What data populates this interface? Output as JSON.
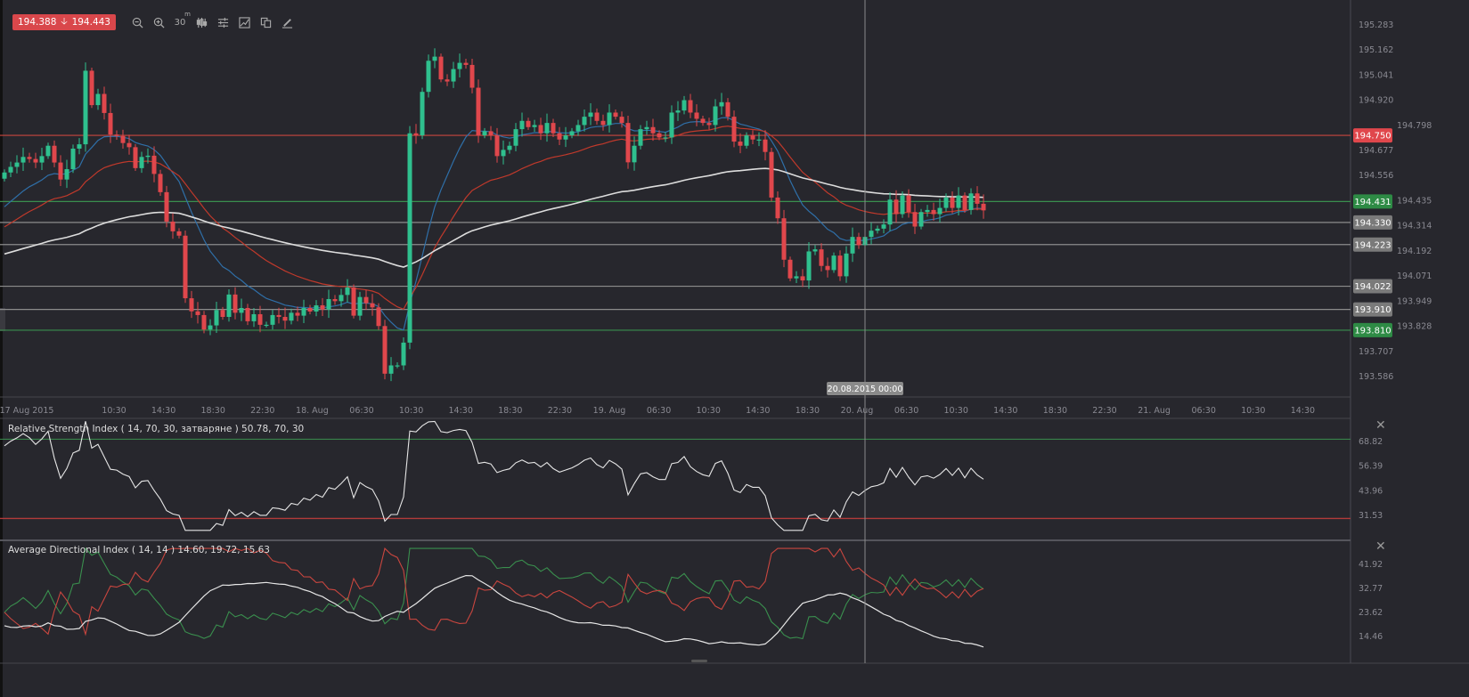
{
  "toolbar": {
    "bid": "194.388",
    "ask": "194.443",
    "timeframe": "30",
    "timeframe_unit": "m",
    "icons": [
      "zoom-out-icon",
      "zoom-in-icon",
      "timeframe",
      "candle-type-icon",
      "indicators-icon",
      "chart-area-icon",
      "copy-icon",
      "draw-icon"
    ]
  },
  "crosshair_label": "20.08.2015 00:00",
  "rsi": {
    "title": "Relative Strength Index ( 14, 70, 30, затваряне ) 50.78, 70, 30",
    "ticks": [
      "68.82",
      "56.39",
      "43.96",
      "31.53"
    ],
    "overbought": 70,
    "oversold": 30
  },
  "adx": {
    "title": "Average Directional Index ( 14, 14 ) 14.60, 19.72, 15.63",
    "ticks": [
      "41.92",
      "32.77",
      "23.62",
      "14.46"
    ]
  },
  "colors": {
    "bull": "#2fc08e",
    "bear": "#e0474c",
    "ma_fast": "#2f6fa8",
    "ma_mid": "#c0392b",
    "ma_slow": "#dddddd",
    "bg": "#27272d"
  },
  "chart_data": {
    "type": "candlestick",
    "timeframe": "30m",
    "price_axis": {
      "min": 193.586,
      "max": 195.283,
      "ticks": [
        "195.283",
        "195.162",
        "195.041",
        "194.920",
        "194.798",
        "194.677",
        "194.556",
        "194.435",
        "194.314",
        "194.192",
        "194.071",
        "193.949",
        "193.828",
        "193.707",
        "193.586"
      ]
    },
    "time_labels": [
      "17 Aug 2015",
      "10:30",
      "14:30",
      "18:30",
      "22:30",
      "18. Aug",
      "06:30",
      "10:30",
      "14:30",
      "18:30",
      "22:30",
      "19. Aug",
      "06:30",
      "10:30",
      "14:30",
      "18:30",
      "20. Aug",
      "06:30",
      "10:30",
      "14:30",
      "18:30",
      "22:30",
      "21. Aug",
      "06:30",
      "10:30",
      "14:30"
    ],
    "closes": [
      194.571,
      194.598,
      194.619,
      194.646,
      194.636,
      194.619,
      194.65,
      194.7,
      194.619,
      194.537,
      194.587,
      194.686,
      194.707,
      195.062,
      194.896,
      194.95,
      194.858,
      194.754,
      194.747,
      194.713,
      194.693,
      194.592,
      194.646,
      194.652,
      194.564,
      194.476,
      194.334,
      194.287,
      194.266,
      193.964,
      193.901,
      193.883,
      193.813,
      193.833,
      193.907,
      193.874,
      193.982,
      193.894,
      193.917,
      193.853,
      193.887,
      193.836,
      193.836,
      193.883,
      193.874,
      193.856,
      193.894,
      193.88,
      193.917,
      193.9,
      193.93,
      193.91,
      193.96,
      193.95,
      193.98,
      194.016,
      193.88,
      193.97,
      193.94,
      193.92,
      193.83,
      193.6,
      193.64,
      193.64,
      193.75,
      194.76,
      194.75,
      194.96,
      195.11,
      195.13,
      195.02,
      195.01,
      195.07,
      195.1,
      195.09,
      194.98,
      194.75,
      194.77,
      194.75,
      194.65,
      194.68,
      194.7,
      194.78,
      194.82,
      194.79,
      194.8,
      194.76,
      194.81,
      194.76,
      194.73,
      194.75,
      194.77,
      194.8,
      194.84,
      194.86,
      194.82,
      194.8,
      194.86,
      194.84,
      194.81,
      194.62,
      194.7,
      194.78,
      194.79,
      194.76,
      194.74,
      194.74,
      194.86,
      194.87,
      194.92,
      194.86,
      194.83,
      194.81,
      194.8,
      194.89,
      194.91,
      194.84,
      194.72,
      194.7,
      194.75,
      194.73,
      194.73,
      194.67,
      194.45,
      194.35,
      194.15,
      194.06,
      194.07,
      194.05,
      194.19,
      194.2,
      194.12,
      194.1,
      194.17,
      194.07,
      194.18,
      194.26,
      194.22,
      194.26,
      194.29,
      194.3,
      194.32,
      194.44,
      194.37,
      194.46,
      194.38,
      194.31,
      194.38,
      194.39,
      194.37,
      194.4,
      194.45,
      194.4,
      194.46,
      194.39,
      194.47,
      194.42,
      194.388
    ],
    "moving_averages": [
      {
        "name": "fast",
        "period": 14,
        "seed": 194.38
      },
      {
        "name": "mid",
        "period": 30,
        "seed": 194.29
      },
      {
        "name": "slow",
        "period": 100,
        "seed": 194.17
      }
    ],
    "levels": [
      {
        "value": "194.750",
        "kind": "red"
      },
      {
        "value": "194.431",
        "kind": "green"
      },
      {
        "value": "194.330",
        "kind": "grey"
      },
      {
        "value": "194.223",
        "kind": "grey"
      },
      {
        "value": "194.022",
        "kind": "grey"
      },
      {
        "value": "193.910",
        "kind": "grey"
      },
      {
        "value": "193.810",
        "kind": "green"
      }
    ]
  }
}
